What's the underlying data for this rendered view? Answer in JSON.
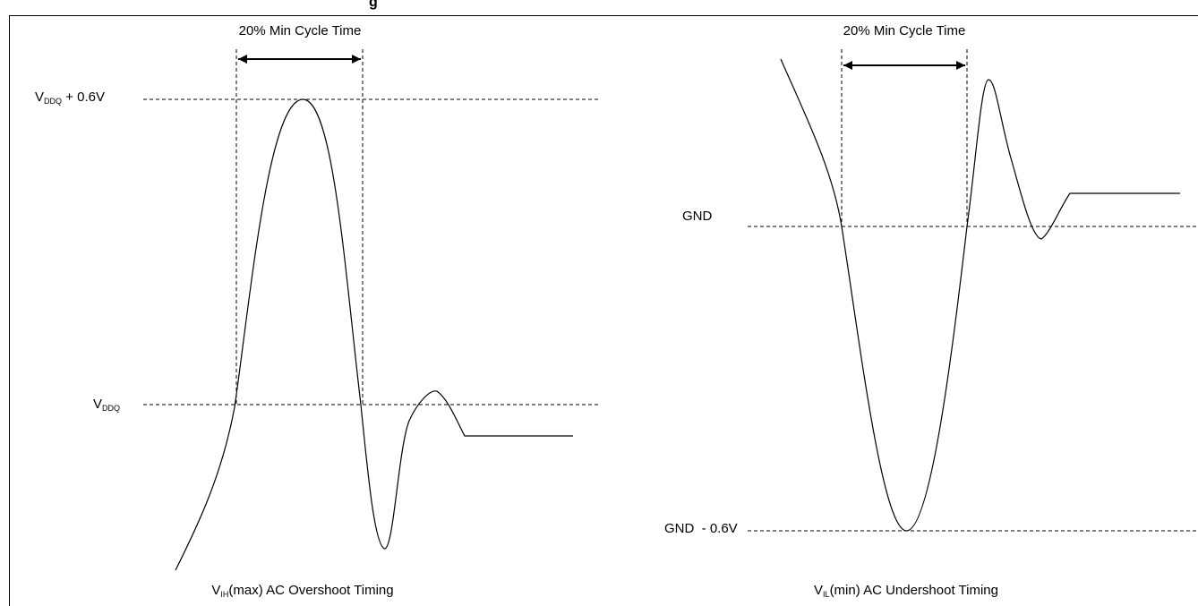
{
  "heading_fragment": "g",
  "left_panel": {
    "arrow_label": "20% Min Cycle Time",
    "level_high": {
      "main": "V",
      "sub": "DDQ",
      "suffix": " + 0.6V"
    },
    "level_low": {
      "main": "V",
      "sub": "DDQ",
      "suffix": ""
    },
    "caption": {
      "main": "V",
      "sub": "IH",
      "suffix": "(max) AC Overshoot Timing"
    }
  },
  "right_panel": {
    "arrow_label": "20% Min Cycle Time",
    "level_high": {
      "main": "GND",
      "sub": "",
      "suffix": ""
    },
    "level_low": {
      "main": "GND  - 0.6V",
      "sub": "",
      "suffix": ""
    },
    "caption": {
      "main": "V",
      "sub": "IL",
      "suffix": "(min) AC Undershoot Timing"
    }
  },
  "colors": {
    "line": "#000000",
    "background": "#ffffff"
  }
}
